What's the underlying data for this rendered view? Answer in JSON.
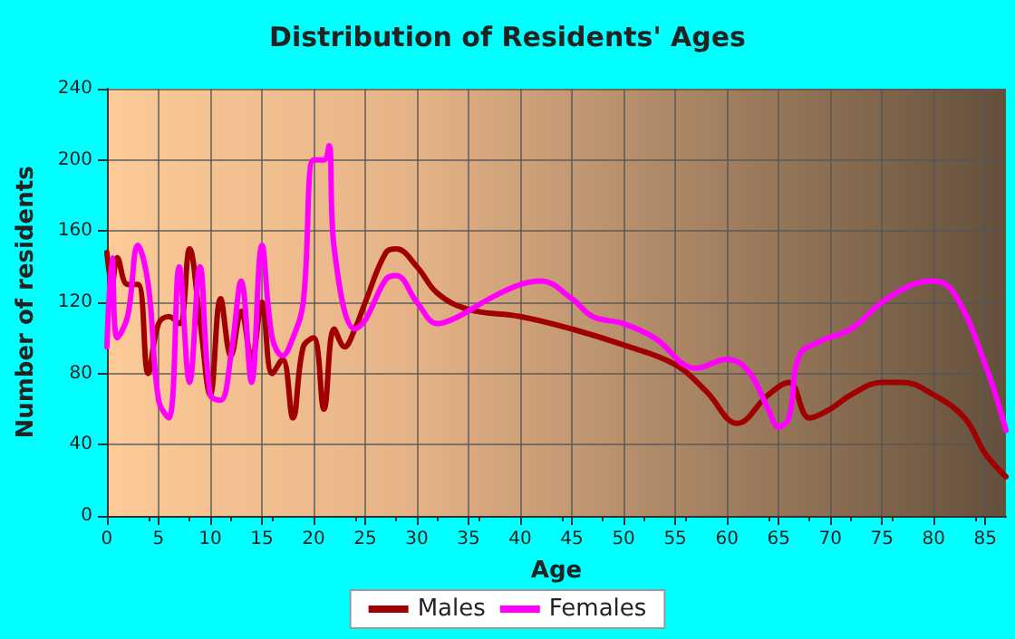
{
  "chart_data": {
    "type": "line",
    "title": "Distribution of Residents' Ages",
    "xlabel": "Age",
    "ylabel": "Number of residents",
    "xlim": [
      0,
      87
    ],
    "xticks": [
      0,
      5,
      10,
      15,
      20,
      25,
      30,
      35,
      40,
      45,
      50,
      55,
      60,
      65,
      70,
      75,
      80,
      85
    ],
    "ylim": [
      0,
      240
    ],
    "yticks": [
      0,
      40,
      80,
      120,
      160,
      200,
      240
    ],
    "grid": true,
    "legend": "bottom",
    "marker": "none",
    "line_style": "solid",
    "series": [
      {
        "name": "Males",
        "color": "#a00000",
        "x": [
          0,
          0.5,
          1,
          2,
          3,
          4,
          5,
          6,
          7,
          8,
          9,
          10,
          11,
          12,
          13,
          14,
          15,
          16,
          17,
          18,
          19,
          20,
          21,
          22,
          23,
          24,
          25,
          27,
          28,
          30,
          32,
          35,
          40,
          45,
          50,
          55,
          58,
          61,
          64,
          66,
          68,
          70,
          72,
          75,
          77,
          80,
          83,
          85,
          87
        ],
        "values": [
          148,
          130,
          145,
          130,
          130,
          80,
          108,
          112,
          108,
          150,
          110,
          68,
          122,
          90,
          115,
          88,
          120,
          80,
          88,
          55,
          95,
          100,
          60,
          105,
          95,
          105,
          120,
          148,
          150,
          140,
          125,
          116,
          112,
          105,
          96,
          85,
          70,
          52,
          68,
          75,
          55,
          60,
          68,
          75,
          75,
          68,
          55,
          35,
          22
        ]
      },
      {
        "name": "Females",
        "color": "#ff00ff",
        "x": [
          0,
          0.5,
          1,
          2,
          3,
          4,
          5,
          6,
          7,
          8,
          9,
          10,
          11,
          12,
          13,
          14,
          15,
          16,
          17,
          18,
          19,
          20,
          21,
          21.5,
          22,
          24,
          25,
          27,
          28,
          30,
          32,
          34,
          37,
          40,
          42,
          45,
          47,
          50,
          53,
          57,
          60,
          62,
          64,
          65,
          66,
          67,
          69,
          72,
          75,
          78,
          80,
          82,
          85,
          87
        ],
        "values": [
          95,
          145,
          100,
          112,
          152,
          130,
          65,
          55,
          140,
          75,
          140,
          68,
          65,
          90,
          132,
          75,
          152,
          100,
          90,
          100,
          120,
          200,
          200,
          208,
          150,
          105,
          110,
          133,
          135,
          120,
          108,
          112,
          122,
          130,
          132,
          122,
          112,
          108,
          100,
          83,
          88,
          82,
          60,
          50,
          55,
          90,
          98,
          105,
          120,
          130,
          132,
          125,
          85,
          48
        ]
      }
    ]
  }
}
